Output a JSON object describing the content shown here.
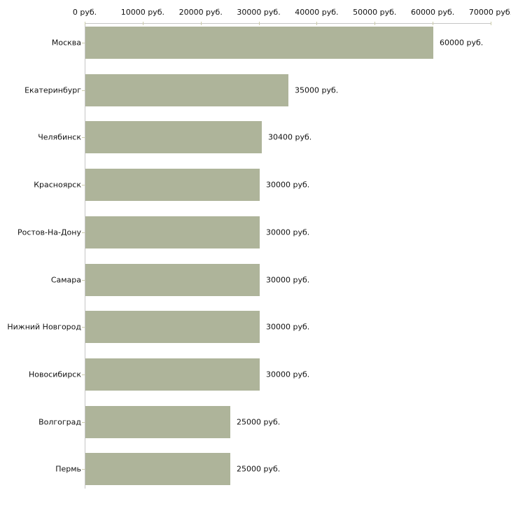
{
  "chart_data": {
    "type": "bar",
    "orientation": "horizontal",
    "title": "",
    "xlabel": "",
    "ylabel": "",
    "categories": [
      "Москва",
      "Екатеринбург",
      "Челябинск",
      "Красноярск",
      "Ростов-На-Дону",
      "Самара",
      "Нижний Новгород",
      "Новосибирск",
      "Волгоград",
      "Пермь"
    ],
    "values": [
      60000,
      35000,
      30400,
      30000,
      30000,
      30000,
      30000,
      30000,
      25000,
      25000
    ],
    "value_labels": [
      "60000 руб.",
      "35000 руб.",
      "30400 руб.",
      "30000 руб.",
      "30000 руб.",
      "30000 руб.",
      "30000 руб.",
      "30000 руб.",
      "25000 руб.",
      "25000 руб."
    ],
    "xlim": [
      0,
      70000
    ],
    "tick_values": [
      0,
      10000,
      20000,
      30000,
      40000,
      50000,
      60000,
      70000
    ],
    "tick_labels": [
      "0 руб.",
      "10000 руб.",
      "20000 руб.",
      "30000 руб.",
      "40000 руб.",
      "50000 руб.",
      "60000 руб.",
      "70000 руб."
    ],
    "axis_position": "top",
    "grid": false,
    "legend": false,
    "colors": {
      "bar_fill": "#aeb49a",
      "axis_line": "#c6c6c6",
      "tick_mark": "#ccccaa",
      "text": "#111111",
      "background": "#ffffff"
    }
  }
}
